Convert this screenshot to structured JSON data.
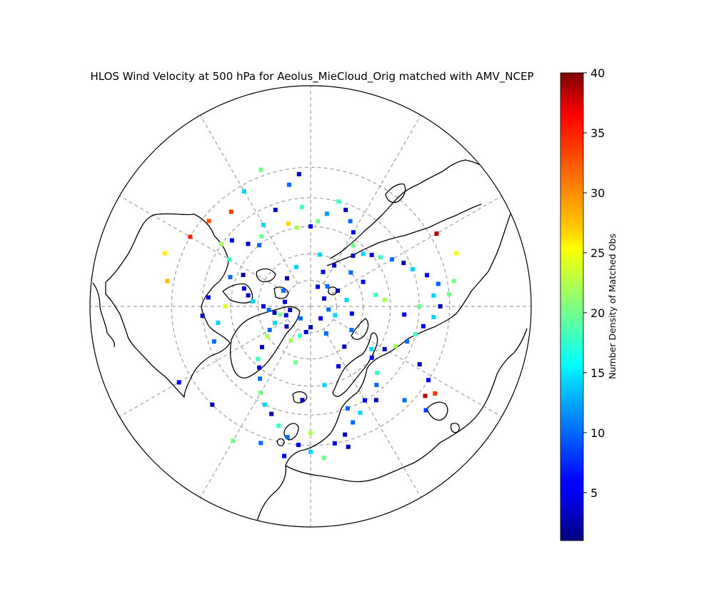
{
  "figure": {
    "title": "HLOS Wind Velocity at 500 hPa for Aeolus_MieCloud_Orig matched with AMV_NCEP",
    "projection": "north-polar-stereographic",
    "graticule": {
      "parallels_deg": [
        80,
        70,
        60,
        50,
        40
      ],
      "meridian_step_deg": 30,
      "style": "dashed-gray"
    },
    "coastline_color": "#000000"
  },
  "colorbar": {
    "label": "Number Density of Matched Obs",
    "colormap": "jet",
    "vmin": 1,
    "vmax": 40,
    "ticks": [
      "5",
      "10",
      "15",
      "20",
      "25",
      "30",
      "35",
      "40"
    ],
    "tick_values": [
      5,
      10,
      15,
      20,
      25,
      30,
      35,
      40
    ]
  },
  "chart_data": {
    "type": "heatmap",
    "title": "HLOS Wind Velocity at 500 hPa for Aeolus_MieCloud_Orig matched with AMV_NCEP",
    "value_label": "Number Density of Matched Obs",
    "value_range": [
      1,
      40
    ],
    "cells_lon_lat_value": [
      [
        -170,
        60,
        22
      ],
      [
        -165,
        58,
        27
      ],
      [
        -175,
        53,
        18
      ],
      [
        -160,
        52,
        3
      ],
      [
        -150,
        55,
        14
      ],
      [
        -145,
        58,
        20
      ],
      [
        -140,
        60,
        10
      ],
      [
        -135,
        57,
        3
      ],
      [
        -130,
        52,
        5
      ],
      [
        -125,
        50,
        22
      ],
      [
        -120,
        55,
        18
      ],
      [
        -115,
        62,
        3
      ],
      [
        -110,
        58,
        10
      ],
      [
        -105,
        64,
        5
      ],
      [
        -100,
        66,
        3
      ],
      [
        -95,
        68,
        14
      ],
      [
        -90,
        72,
        5
      ],
      [
        -85,
        74,
        10
      ],
      [
        -80,
        76,
        3
      ],
      [
        -75,
        78,
        20
      ],
      [
        -70,
        80,
        5
      ],
      [
        -65,
        75,
        14
      ],
      [
        -60,
        72,
        10
      ],
      [
        -55,
        70,
        22
      ],
      [
        -50,
        66,
        3
      ],
      [
        -45,
        62,
        18
      ],
      [
        -40,
        60,
        5
      ],
      [
        -35,
        57,
        10
      ],
      [
        -30,
        53,
        20
      ],
      [
        -25,
        50,
        14
      ],
      [
        -20,
        48,
        3
      ],
      [
        -15,
        45,
        18
      ],
      [
        -10,
        42,
        10
      ],
      [
        -5,
        40,
        5
      ],
      [
        0,
        38,
        14
      ],
      [
        5,
        36,
        20
      ],
      [
        10,
        40,
        5
      ],
      [
        15,
        42,
        3
      ],
      [
        20,
        45,
        10
      ],
      [
        25,
        47,
        14
      ],
      [
        30,
        50,
        5
      ],
      [
        35,
        48,
        3
      ],
      [
        40,
        52,
        10
      ],
      [
        45,
        55,
        18
      ],
      [
        50,
        60,
        5
      ],
      [
        55,
        62,
        14
      ],
      [
        60,
        58,
        3
      ],
      [
        65,
        55,
        22
      ],
      [
        70,
        52,
        10
      ],
      [
        75,
        50,
        18
      ],
      [
        80,
        48,
        5
      ],
      [
        85,
        45,
        14
      ],
      [
        90,
        43,
        3
      ],
      [
        95,
        40,
        20
      ],
      [
        100,
        43,
        10
      ],
      [
        105,
        46,
        5
      ],
      [
        110,
        50,
        14
      ],
      [
        115,
        52,
        3
      ],
      [
        120,
        55,
        10
      ],
      [
        125,
        58,
        18
      ],
      [
        130,
        60,
        5
      ],
      [
        135,
        62,
        14
      ],
      [
        140,
        65,
        3
      ],
      [
        145,
        62,
        20
      ],
      [
        150,
        58,
        5
      ],
      [
        155,
        55,
        10
      ],
      [
        160,
        52,
        3
      ],
      [
        165,
        50,
        18
      ],
      [
        170,
        55,
        12
      ],
      [
        175,
        58,
        20
      ],
      [
        180,
        60,
        5
      ],
      [
        52,
        38,
        38
      ],
      [
        55,
        36,
        33
      ],
      [
        48,
        35,
        8
      ],
      [
        58,
        40,
        5
      ],
      [
        62,
        45,
        3
      ],
      [
        45,
        42,
        10
      ],
      [
        120,
        38,
        38
      ],
      [
        110,
        35,
        25
      ],
      [
        100,
        38,
        20
      ],
      [
        95,
        45,
        14
      ],
      [
        90,
        50,
        20
      ],
      [
        85,
        55,
        5
      ],
      [
        -130,
        42,
        32
      ],
      [
        -120,
        40,
        34
      ],
      [
        -140,
        45,
        33
      ],
      [
        -100,
        38,
        28
      ],
      [
        -110,
        35,
        26
      ],
      [
        -160,
        38,
        20
      ],
      [
        -150,
        42,
        14
      ],
      [
        -170,
        45,
        10
      ],
      [
        -175,
        42,
        3
      ],
      [
        -60,
        36,
        5
      ],
      [
        -45,
        40,
        3
      ],
      [
        -30,
        35,
        20
      ],
      [
        -20,
        38,
        10
      ],
      [
        -10,
        36,
        5
      ],
      [
        0,
        44,
        22
      ],
      [
        15,
        38,
        3
      ],
      [
        20,
        50,
        10
      ],
      [
        -5,
        55,
        3
      ],
      [
        10,
        60,
        14
      ],
      [
        25,
        65,
        5
      ],
      [
        -15,
        68,
        20
      ],
      [
        40,
        70,
        3
      ],
      [
        60,
        72,
        10
      ],
      [
        80,
        74,
        5
      ],
      [
        100,
        76,
        14
      ],
      [
        120,
        78,
        3
      ],
      [
        140,
        80,
        10
      ],
      [
        160,
        76,
        5
      ],
      [
        -160,
        74,
        14
      ],
      [
        -140,
        76,
        3
      ],
      [
        -120,
        78,
        10
      ],
      [
        -100,
        80,
        5
      ],
      [
        -80,
        82,
        3
      ],
      [
        -40,
        84,
        10
      ],
      [
        0,
        82,
        3
      ],
      [
        40,
        84,
        5
      ],
      [
        80,
        83,
        10
      ],
      [
        120,
        84,
        3
      ],
      [
        160,
        82,
        5
      ],
      [
        -30,
        75,
        22
      ],
      [
        -20,
        78,
        18
      ],
      [
        -10,
        80,
        5
      ],
      [
        -50,
        78,
        3
      ],
      [
        30,
        78,
        10
      ],
      [
        70,
        80,
        14
      ],
      [
        95,
        62,
        22
      ],
      [
        100,
        65,
        18
      ],
      [
        115,
        68,
        5
      ],
      [
        130,
        70,
        10
      ],
      [
        150,
        72,
        3
      ],
      [
        170,
        70,
        14
      ],
      [
        -90,
        58,
        24
      ],
      [
        -80,
        55,
        14
      ],
      [
        -70,
        52,
        10
      ],
      [
        -95,
        52,
        5
      ],
      [
        -85,
        50,
        3
      ]
    ]
  }
}
